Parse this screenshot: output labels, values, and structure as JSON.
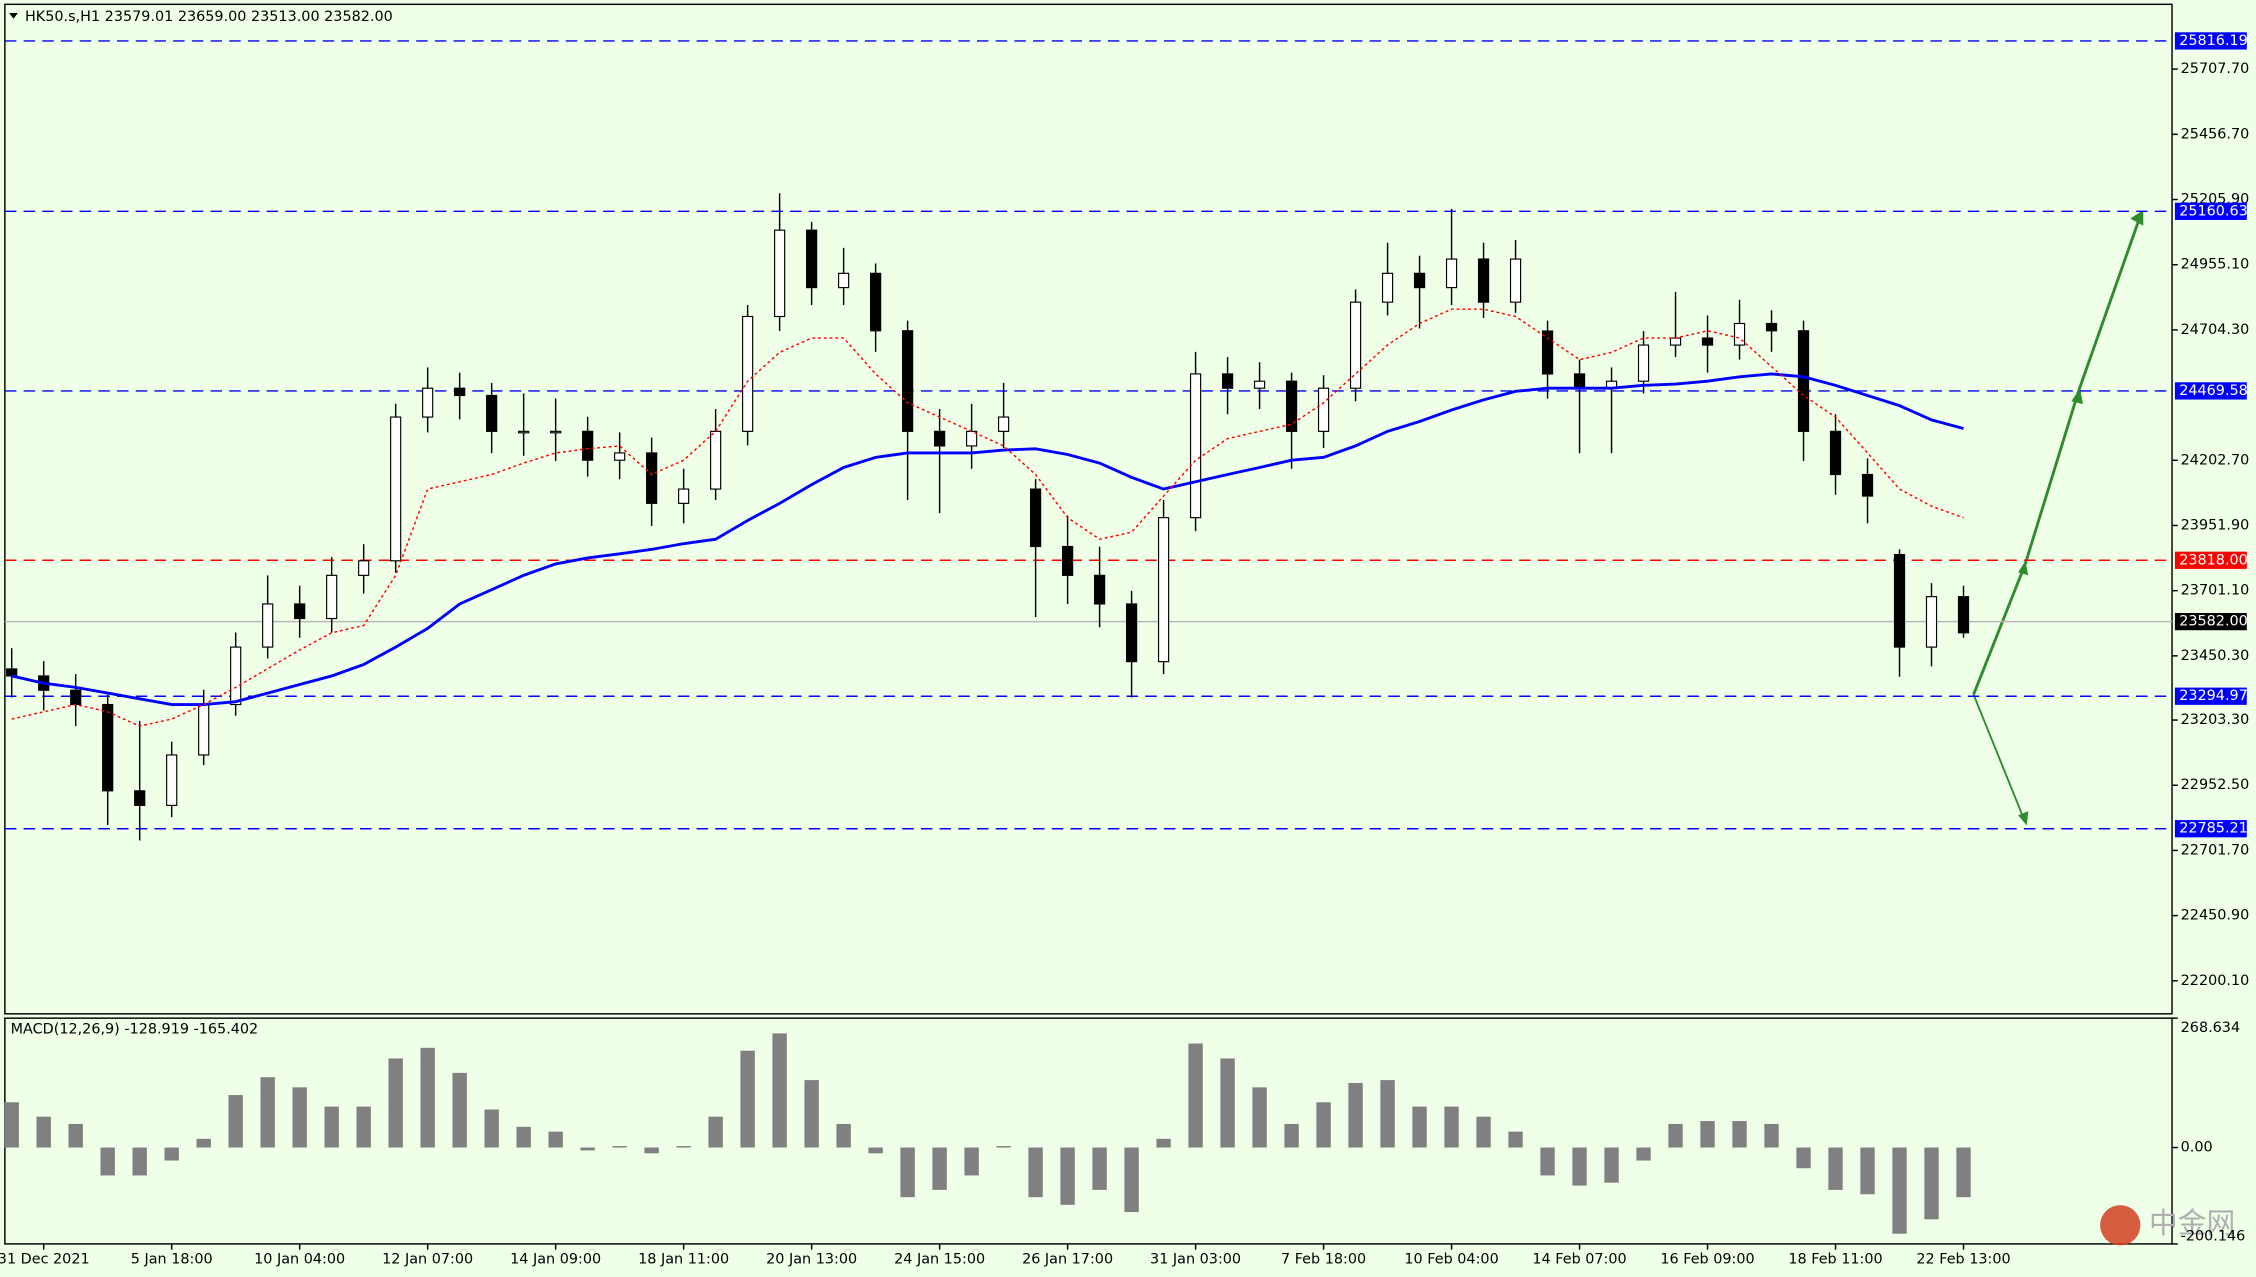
{
  "chart_data": [
    {
      "type": "candlestick",
      "title": "HK50.s,H1  23579.01 23659.00 23513.00 23582.00",
      "categories": [
        null,
        "31 Dec 2021",
        null,
        null,
        null,
        "5 Jan 18:00",
        null,
        null,
        null,
        "10 Jan 04:00",
        null,
        null,
        null,
        "12 Jan 07:00",
        null,
        null,
        null,
        "14 Jan 09:00",
        null,
        null,
        null,
        "18 Jan 11:00",
        null,
        null,
        null,
        "20 Jan 13:00",
        null,
        null,
        null,
        "24 Jan 15:00",
        null,
        null,
        null,
        "26 Jan 17:00",
        null,
        null,
        null,
        "31 Jan 03:00",
        null,
        null,
        null,
        "7 Feb 18:00",
        null,
        null,
        null,
        "10 Feb 04:00",
        null,
        null,
        null,
        "14 Feb 07:00",
        null,
        null,
        null,
        "16 Feb 09:00",
        null,
        null,
        null,
        "18 Feb 11:00",
        null,
        null,
        null,
        "22 Feb 13:00"
      ],
      "open": [
        23400,
        23373,
        23318,
        23263,
        22931,
        22875,
        23069,
        23263,
        23484,
        23650,
        23594,
        23760,
        23816,
        24369,
        24480,
        24452,
        24314,
        24314,
        24314,
        24203,
        24231,
        24037,
        24092,
        24314,
        24756,
        25088,
        24867,
        24922,
        24701,
        24314,
        24258,
        24314,
        24092,
        23871,
        23760,
        23650,
        23428,
        23982,
        24535,
        24480,
        24507,
        24314,
        24480,
        24811,
        24922,
        24867,
        24977,
        24811,
        24700,
        24535,
        24480,
        24507,
        24646,
        24673,
        24646,
        24729,
        24701,
        24314,
        24148,
        23840,
        23484,
        23678
      ],
      "high": [
        23480,
        23430,
        23380,
        23300,
        23200,
        23120,
        23320,
        23540,
        23760,
        23720,
        23830,
        23880,
        24420,
        24560,
        24540,
        24500,
        24460,
        24440,
        24370,
        24310,
        24290,
        24170,
        24400,
        24800,
        25230,
        25120,
        25020,
        24960,
        24740,
        24400,
        24420,
        24500,
        24130,
        23990,
        23870,
        23700,
        24050,
        24620,
        24600,
        24580,
        24540,
        24530,
        24860,
        25040,
        24990,
        25170,
        25040,
        25050,
        24740,
        24590,
        24560,
        24700,
        24850,
        24760,
        24820,
        24780,
        24740,
        24380,
        24210,
        23860,
        23730,
        23720
      ],
      "low": [
        23290,
        23240,
        23180,
        22800,
        22740,
        22830,
        23030,
        23220,
        23440,
        23520,
        23540,
        23690,
        23770,
        24310,
        24360,
        24230,
        24220,
        24200,
        24140,
        24130,
        23950,
        23960,
        24050,
        24260,
        24700,
        24800,
        24800,
        24620,
        24050,
        24000,
        24170,
        24250,
        23600,
        23650,
        23560,
        23290,
        23380,
        23930,
        24380,
        24400,
        24170,
        24250,
        24430,
        24760,
        24710,
        24800,
        24750,
        24770,
        24440,
        24230,
        24230,
        24460,
        24600,
        24540,
        24590,
        24620,
        24200,
        24070,
        23960,
        23370,
        23410,
        23520
      ],
      "close": [
        23373,
        23318,
        23263,
        22931,
        22875,
        23069,
        23263,
        23484,
        23650,
        23594,
        23760,
        23816,
        24369,
        24480,
        24452,
        24314,
        24314,
        24314,
        24203,
        24231,
        24037,
        24092,
        24314,
        24756,
        25088,
        24867,
        24922,
        24701,
        24314,
        24258,
        24314,
        24369,
        23871,
        23760,
        23650,
        23428,
        23982,
        24535,
        24480,
        24507,
        24314,
        24480,
        24811,
        24922,
        24867,
        24977,
        24811,
        24977,
        24535,
        24480,
        24507,
        24646,
        24673,
        24646,
        24729,
        24701,
        24314,
        24148,
        24065,
        23484,
        23678,
        23539
      ],
      "lines": [
        {
          "color": "#0000ff",
          "values": [
            23373,
            23345,
            23329,
            23307,
            23285,
            23263,
            23263,
            23274,
            23307,
            23340,
            23373,
            23417,
            23484,
            23556,
            23650,
            23705,
            23760,
            23804,
            23827,
            23843,
            23860,
            23882,
            23899,
            23971,
            24037,
            24109,
            24175,
            24214,
            24231,
            24231,
            24231,
            24242,
            24247,
            24225,
            24192,
            24137,
            24092,
            24120,
            24148,
            24175,
            24203,
            24214,
            24258,
            24314,
            24352,
            24396,
            24435,
            24468,
            24480,
            24480,
            24480,
            24491,
            24496,
            24507,
            24524,
            24535,
            24524,
            24491,
            24452,
            24413,
            24358,
            24325
          ]
        },
        {
          "color": "#ff0000",
          "values": [
            23207,
            23235,
            23263,
            23235,
            23180,
            23207,
            23263,
            23329,
            23401,
            23473,
            23539,
            23567,
            23760,
            24092,
            24120,
            24148,
            24192,
            24231,
            24247,
            24258,
            24148,
            24203,
            24314,
            24507,
            24618,
            24673,
            24673,
            24535,
            24424,
            24369,
            24314,
            24258,
            24148,
            23982,
            23899,
            23926,
            24065,
            24203,
            24286,
            24314,
            24341,
            24424,
            24535,
            24646,
            24729,
            24784,
            24784,
            24756,
            24673,
            24590,
            24618,
            24673,
            24673,
            24701,
            24673,
            24563,
            24452,
            24369,
            24231,
            24092,
            24026,
            23982
          ]
        }
      ],
      "levels": [
        {
          "value": 25816.19,
          "color": "#0000ff"
        },
        {
          "value": 25160.63,
          "color": "#0000ff"
        },
        {
          "value": 24469.58,
          "color": "#0000ff"
        },
        {
          "value": 23818,
          "label": "23818.00",
          "color": "#ff0000"
        },
        {
          "value": 23294.97,
          "color": "#0000ff"
        },
        {
          "value": 22785.21,
          "color": "#0000ff"
        }
      ],
      "current": {
        "value": 23582,
        "label": "23582.00",
        "color": "#000000"
      },
      "ylim": [
        22073,
        25957
      ],
      "yticks": [
        {
          "value": 25707.7,
          "label": "25707.70"
        },
        {
          "value": 25456.7,
          "label": "25456.70"
        },
        {
          "value": 25205.9,
          "label": "25205.90"
        },
        {
          "value": 24955.1,
          "label": "24955.10"
        },
        {
          "value": 24704.3,
          "label": "24704.30"
        },
        {
          "value": 24202.7,
          "label": "24202.70"
        },
        {
          "value": 23951.9,
          "label": "23951.90"
        },
        {
          "value": 23701.1,
          "label": "23701.10"
        },
        {
          "value": 23450.3,
          "label": "23450.30"
        },
        {
          "value": 23203.3,
          "label": "23203.30"
        },
        {
          "value": 22952.5,
          "label": "22952.50"
        },
        {
          "value": 22701.7,
          "label": "22701.70"
        },
        {
          "value": 22450.9,
          "label": "22450.90"
        },
        {
          "value": 22200.1,
          "label": "22200.10"
        }
      ]
    },
    {
      "type": "histogram",
      "title": "MACD(12,26,9) -128.919 -165.402",
      "color": "#808080",
      "values": [
        94,
        64,
        49,
        -58,
        -58,
        -27,
        18,
        109,
        146,
        125,
        85,
        85,
        185,
        207,
        155,
        79,
        43,
        33,
        -6,
        3,
        -12,
        3,
        64,
        201,
        237,
        140,
        49,
        -12,
        -103,
        -88,
        -58,
        3,
        -103,
        -119,
        -88,
        -134,
        18,
        216,
        185,
        125,
        49,
        94,
        134,
        140,
        85,
        85,
        64,
        33,
        -58,
        -79,
        -73,
        -27,
        49,
        55,
        55,
        49,
        -43,
        -88,
        -97,
        -179,
        -149,
        -103
      ],
      "ylim": [
        -200.146,
        268.634
      ],
      "yticks": [
        268.634,
        {
          "value": 0,
          "label": "0.00"
        },
        -200.146
      ]
    }
  ],
  "watermark": "中金网"
}
